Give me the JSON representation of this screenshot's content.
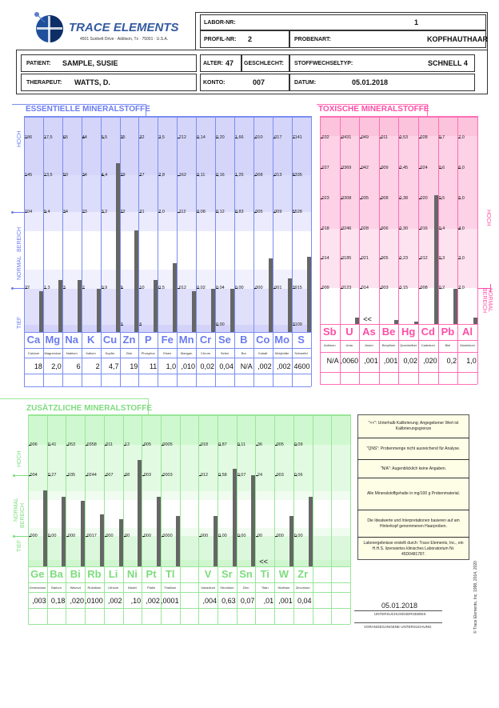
{
  "header": {
    "logo_text": "TRACE ELEMENTS",
    "address": "4501 Sunbelt Drive · Addison, Tx · 75001 · U.S.A.",
    "labor_nr_label": "LABOR-NR:",
    "labor_nr": "1",
    "profil_nr_label": "PROFIL-NR:",
    "profil_nr": "2",
    "probenart_label": "PROBENART:",
    "probenart": "KOPFHAUTHAAR",
    "patient_label": "PATIENT:",
    "patient": "SAMPLE, SUSIE",
    "alter_label": "ALTER:",
    "alter": "47",
    "geschlecht_label": "GESCHLECHT:",
    "stoffwechseltyp_label": "STOFFWECHSELTYP:",
    "stoffwechseltyp": "SCHNELL 4",
    "therapeut_label": "THERAPEUT:",
    "therapeut": "WATTS, D.",
    "konto_label": "KONTO:",
    "konto": "007",
    "datum_label": "DATUM:",
    "datum": "05.01.2018"
  },
  "colors": {
    "essential": "#6b7cf0",
    "toxic": "#ff4da6",
    "additional": "#7ddc7d"
  },
  "zone_labels": {
    "hoch": "HOCH",
    "normal": "NORMAL",
    "bereich": "BEREICH",
    "tief": "TIEF",
    "below_cal": "<<"
  },
  "essential": {
    "title": "ESSENTIELLE MINERALSTOFFE",
    "elements": [
      {
        "symbol": "Ca",
        "name": "Calcium",
        "result": "18",
        "ticks": [
          "186",
          "145",
          "104",
          "22",
          ""
        ],
        "level": 0.19
      },
      {
        "symbol": "Mg",
        "name": "Magnesium",
        "result": "2,0",
        "ticks": [
          "17,5",
          "13,5",
          "9,4",
          "1,3",
          ""
        ],
        "level": 0.24
      },
      {
        "symbol": "Na",
        "name": "Natrium",
        "result": "6",
        "ticks": [
          "65",
          "50",
          "34",
          "3",
          ""
        ],
        "level": 0.24
      },
      {
        "symbol": "K",
        "name": "Kalium",
        "result": "2",
        "ticks": [
          "44",
          "34",
          "23",
          "2",
          ""
        ],
        "level": 0.2
      },
      {
        "symbol": "Cu",
        "name": "Kupfer",
        "result": "4,7",
        "ticks": [
          "5,5",
          "4,4",
          "3,2",
          "0,9",
          ""
        ],
        "level": 0.78
      },
      {
        "symbol": "Zn",
        "name": "Zink",
        "result": "19",
        "ticks": [
          "35",
          "29",
          "22",
          "9",
          "3"
        ],
        "level": 0.47
      },
      {
        "symbol": "P",
        "name": "Phosphor",
        "result": "11",
        "ticks": [
          "32",
          "27",
          "21",
          "10",
          "5"
        ],
        "level": 0.24
      },
      {
        "symbol": "Fe",
        "name": "Eisen",
        "result": "1,0",
        "ticks": [
          "3,5",
          "2,8",
          "2,0",
          "0,5",
          ""
        ],
        "level": 0.32
      },
      {
        "symbol": "Mn",
        "name": "Mangan",
        "result": ",010",
        "ticks": [
          ",212",
          ",162",
          ",112",
          ",012",
          ""
        ],
        "level": 0.19
      },
      {
        "symbol": "Cr",
        "name": "Chrom",
        "result": "0,02",
        "ticks": [
          "0,14",
          "0,11",
          "0,08",
          "0,02",
          ""
        ],
        "level": 0.2
      },
      {
        "symbol": "Se",
        "name": "Selen",
        "result": "0,04",
        "ticks": [
          "0,20",
          "0,16",
          "0,12",
          "0,04",
          "0,00"
        ],
        "level": 0.2
      },
      {
        "symbol": "B",
        "name": "Bor",
        "result": "N/A",
        "ticks": [
          "1,66",
          "1,25",
          "0,83",
          "0,00",
          ""
        ],
        "level": 0
      },
      {
        "symbol": "Co",
        "name": "Kobalt",
        "result": ",002",
        "ticks": [
          ",010",
          ",008",
          ",005",
          ",000",
          ""
        ],
        "level": 0.34
      },
      {
        "symbol": "Mo",
        "name": "Molybdän",
        "result": ",002",
        "ticks": [
          ",017",
          ",013",
          ",009",
          ",001",
          ""
        ],
        "level": 0.25
      },
      {
        "symbol": "S",
        "name": "Schwefel",
        "result": "4600",
        "ticks": [
          "7141",
          "6335",
          "5528",
          "3915",
          "3109"
        ],
        "level": 0.35
      }
    ]
  },
  "toxic": {
    "title": "TOXISCHE MINERALSTOFFE",
    "elements": [
      {
        "symbol": "Sb",
        "name": "Antimon",
        "result": "N/A",
        "ticks": [
          ",032",
          ",027",
          ",023",
          ",018",
          ",014",
          ",009"
        ],
        "level": 0
      },
      {
        "symbol": "U",
        "name": "Uran",
        "result": ",0060",
        "ticks": [
          ",0431",
          ",0369",
          ",0308",
          ",0246",
          ",0185",
          ",0123"
        ],
        "level": 0.03
      },
      {
        "symbol": "As",
        "name": "Arsen",
        "result": ",001",
        "ticks": [
          ",049",
          ",042",
          ",035",
          ",028",
          ",021",
          ",014"
        ],
        "level": 0,
        "below_cal": true
      },
      {
        "symbol": "Be",
        "name": "Beryllium",
        "result": ",001",
        "ticks": [
          ",011",
          ",009",
          ",008",
          ",006",
          ",005",
          ",003"
        ],
        "level": 0.02
      },
      {
        "symbol": "Hg",
        "name": "Quecksilber",
        "result": "0,02",
        "ticks": [
          "0,53",
          "0,45",
          "0,38",
          "0,30",
          "0,23",
          "0,15"
        ],
        "level": 0.01
      },
      {
        "symbol": "Cd",
        "name": "Cadmium",
        "result": ",020",
        "ticks": [
          ",028",
          ",024",
          ",020",
          ",016",
          ",012",
          ",008"
        ],
        "level": 0.62
      },
      {
        "symbol": "Pb",
        "name": "Blei",
        "result": "0,2",
        "ticks": [
          "0,7",
          "0,6",
          "0,5",
          "0,4",
          "0,3",
          "0,2"
        ],
        "level": 0.17
      },
      {
        "symbol": "Al",
        "name": "Aluminium",
        "result": "1,0",
        "ticks": [
          "7,0",
          "6,0",
          "5,0",
          "4,0",
          "3,0",
          "2,0"
        ],
        "level": 0.03
      }
    ]
  },
  "additional": {
    "title": "ZUSÄTZLICHE MINERALSTOFFE",
    "elements": [
      {
        "symbol": "Ge",
        "name": "Germanium",
        "result": ",003",
        "ticks": [
          ",006",
          ",004",
          ",000"
        ],
        "level": 0.5
      },
      {
        "symbol": "Ba",
        "name": "Barium",
        "result": "0,18",
        "ticks": [
          "0,41",
          "0,27",
          "0,00"
        ],
        "level": 0.46
      },
      {
        "symbol": "Bi",
        "name": "Wismut",
        "result": ",020",
        "ticks": [
          ",053",
          ",035",
          ",000"
        ],
        "level": 0.43
      },
      {
        "symbol": "Rb",
        "name": "Rubidium",
        "result": ",0100",
        "ticks": [
          ",0358",
          ",0244",
          ",0017"
        ],
        "level": 0.34
      },
      {
        "symbol": "Li",
        "name": "Lithium",
        "result": ",002",
        "ticks": [
          ",011",
          ",007",
          ",000"
        ],
        "level": 0.31
      },
      {
        "symbol": "Ni",
        "name": "Nickel",
        "result": ",10",
        "ticks": [
          ",12",
          ",08",
          ",00"
        ],
        "level": 0.7
      },
      {
        "symbol": "Pt",
        "name": "Platin",
        "result": ",002",
        "ticks": [
          ",005",
          ",003",
          ",000"
        ],
        "level": 0.46
      },
      {
        "symbol": "Tl",
        "name": "Thallium",
        "result": ",0001",
        "ticks": [
          ",0005",
          ",0003",
          ",0000"
        ],
        "level": 0.33
      },
      {
        "symbol": "V",
        "name": "Vanadium",
        "result": ",004",
        "ticks": [
          ",018",
          ",012",
          ",000"
        ],
        "level": 0.33
      },
      {
        "symbol": "Sr",
        "name": "Strontium",
        "result": "0,63",
        "ticks": [
          "0,87",
          "0,58",
          "0,00"
        ],
        "level": 0.64
      },
      {
        "symbol": "Sn",
        "name": "Zinn",
        "result": "0,07",
        "ticks": [
          "0,11",
          "0,07",
          "0,00"
        ],
        "level": 0.6
      },
      {
        "symbol": "Ti",
        "name": "Titan",
        "result": ",01",
        "ticks": [
          ",36",
          ",24",
          ",00"
        ],
        "level": 0,
        "below_cal": true
      },
      {
        "symbol": "W",
        "name": "Wolfram",
        "result": ",001",
        "ticks": [
          ",005",
          ",003",
          ",000"
        ],
        "level": 0.33
      },
      {
        "symbol": "Zr",
        "name": "Zirconium",
        "result": "0,04",
        "ticks": [
          "0,09",
          "0,06",
          "0,00"
        ],
        "level": 0.46
      }
    ]
  },
  "legend": [
    "\"<<\": Unterhalb Kalibrierung; Angegebener Wert ist Kalibrierungsgrenze",
    "\"QNS\": Probenmenge nicht ausreichend für Analyse.",
    "\"N/A\": Augenblicklich keine Angaben.",
    "Alle Mineralstoffgehalte in mg/100 g Probenmaterial.",
    "Die Idealwerte und Interpretationen basieren auf am Hinterkopf genommenen Haarproben.",
    "Laborergebnisse erstellt durch: Trace Elements, Inc., ein H.H.S. lizensiertes klinisches Laboratorium Nr. 45D0481787."
  ],
  "footer": {
    "result_date": "05.01.2018",
    "result_label": "UNTERSUCHUNGSERGEBNIS",
    "previous_label": "VORANGEGANGENE UNTERSUCHUNG",
    "copyright": "© Trace Elements, Inc. 1998, 2014, 2020"
  }
}
